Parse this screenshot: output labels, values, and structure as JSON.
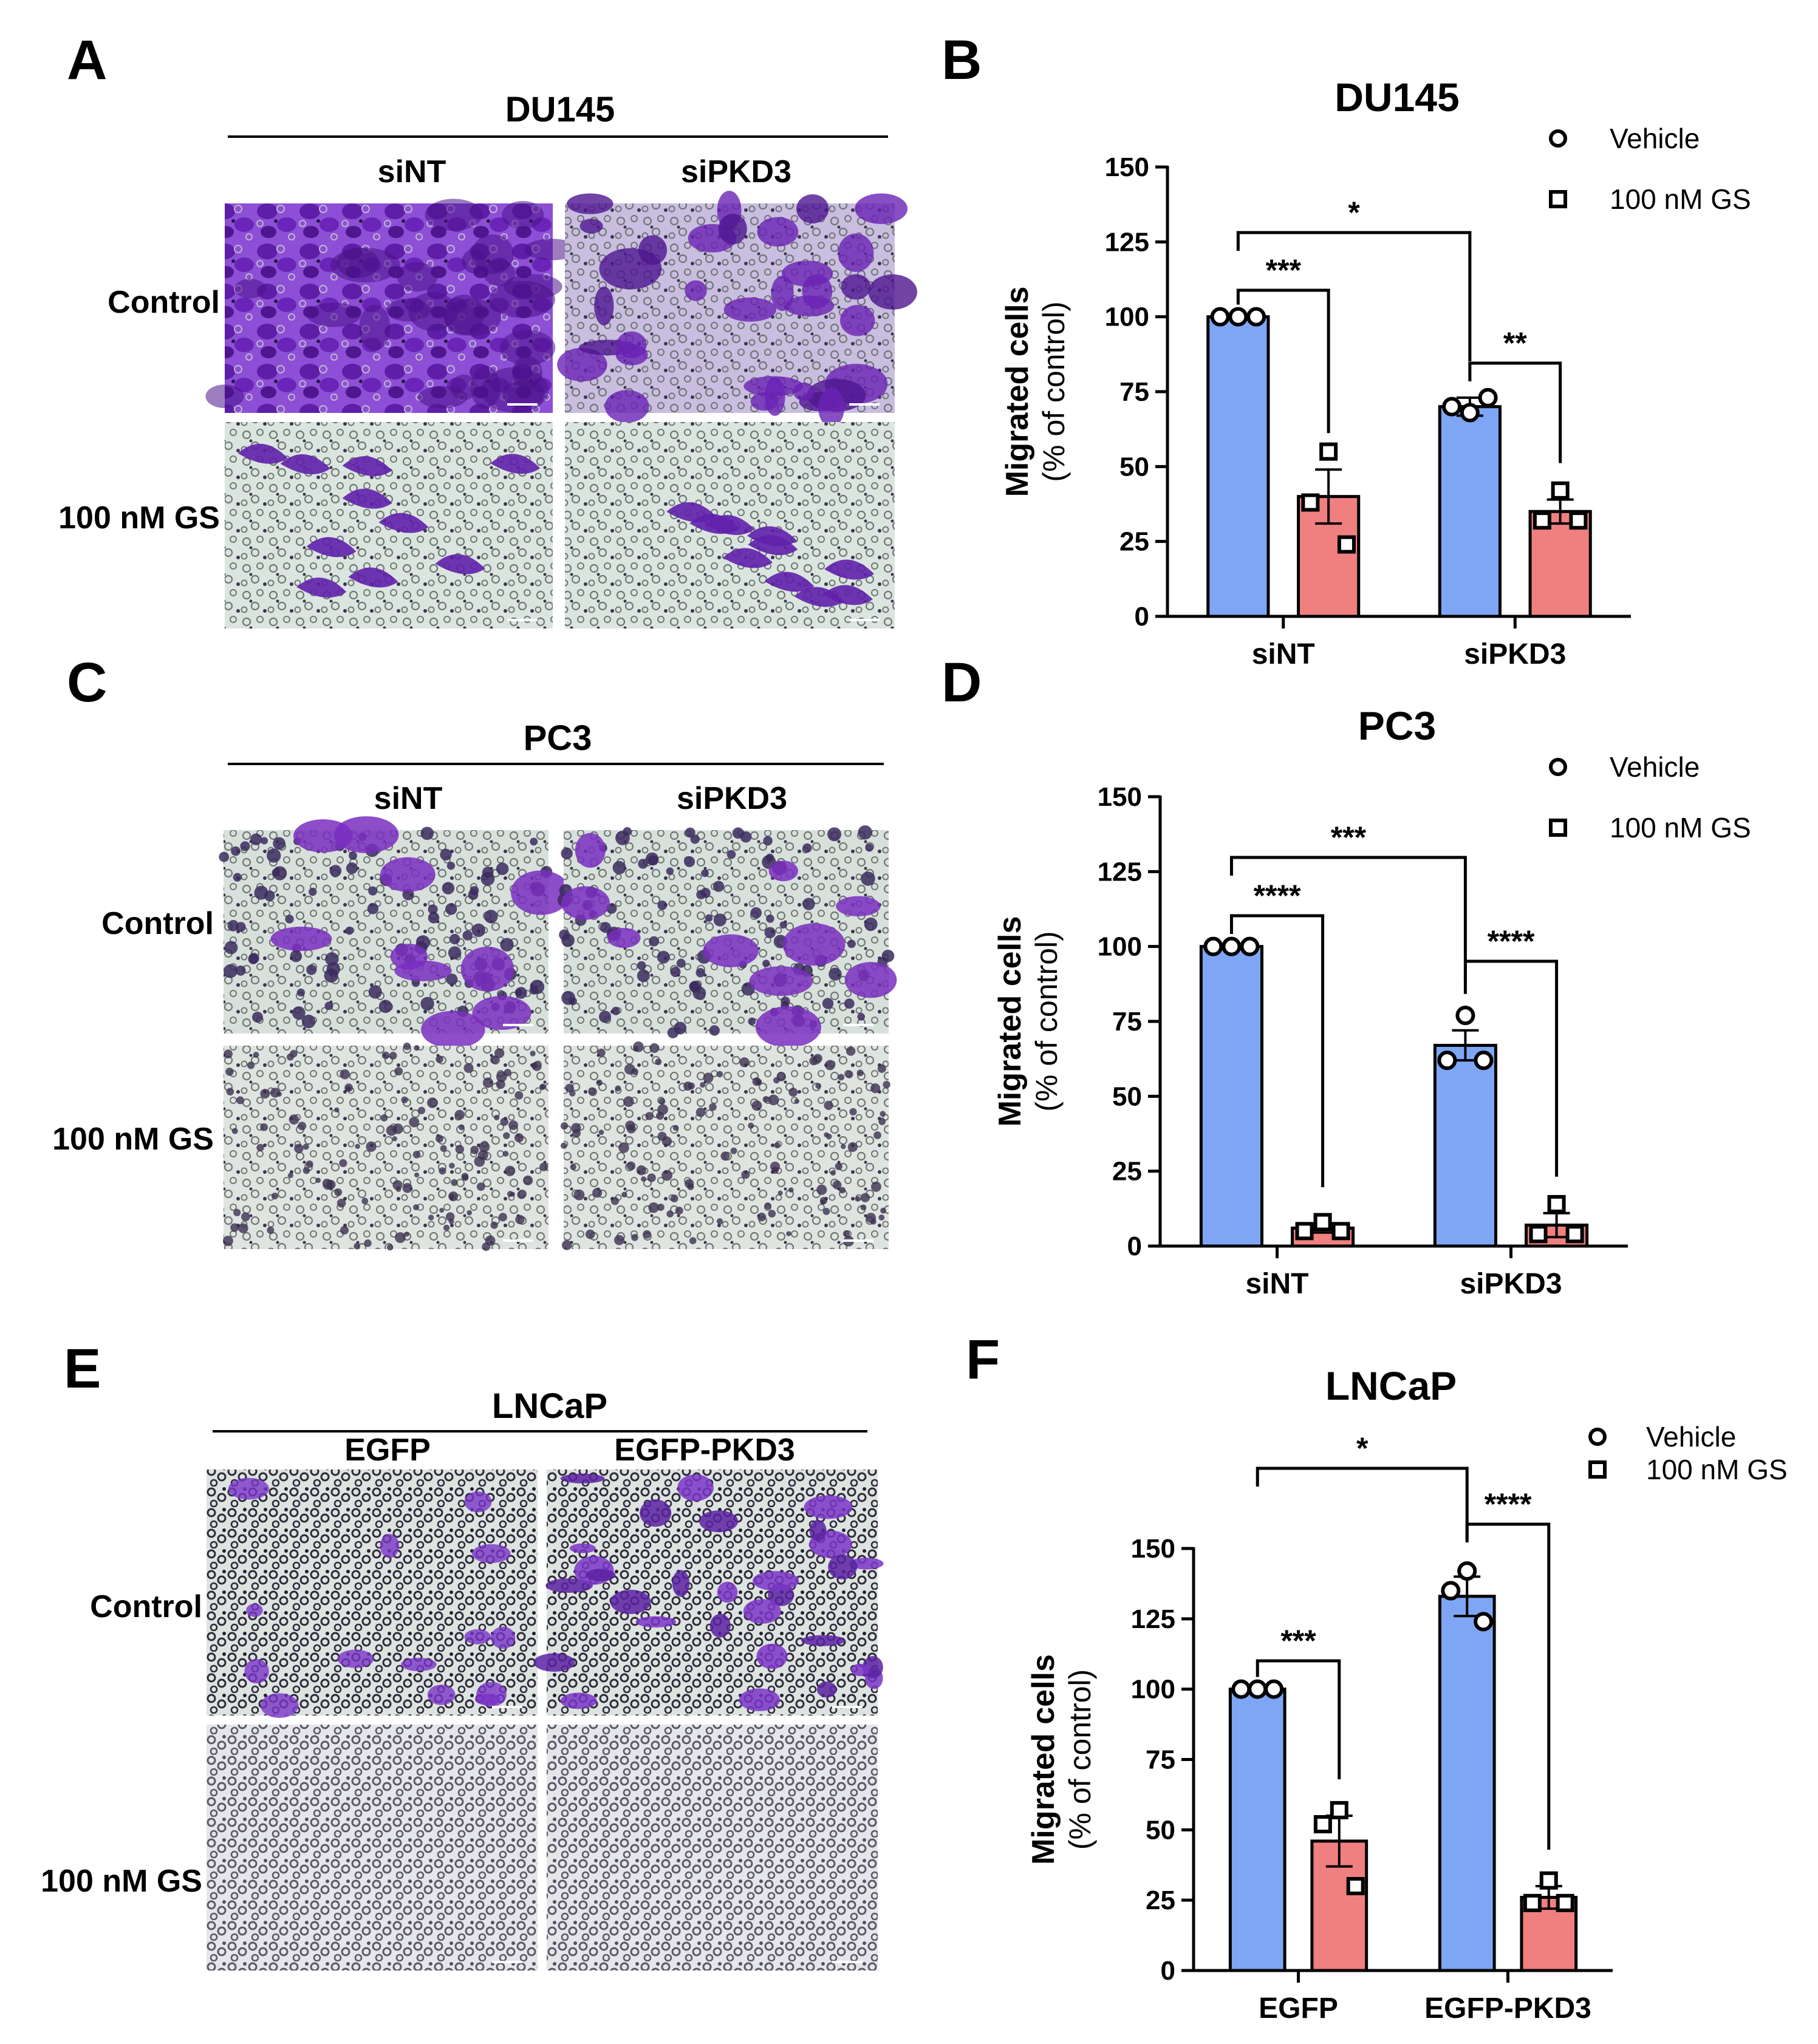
{
  "figure": {
    "panel_labels": [
      "A",
      "B",
      "C",
      "D",
      "E",
      "F"
    ],
    "images": [
      {
        "header": "DU145",
        "columns": [
          "siNT",
          "siPKD3"
        ],
        "rows": [
          "Control",
          "100 nM GS"
        ]
      },
      {
        "header": "PC3",
        "columns": [
          "siNT",
          "siPKD3"
        ],
        "rows": [
          "Control",
          "100 nM GS"
        ]
      },
      {
        "header": "LNCaP",
        "columns": [
          "EGFP",
          "EGFP-PKD3"
        ],
        "rows": [
          "Control",
          "100 nM GS"
        ]
      }
    ]
  },
  "colors": {
    "vehicle": "#7ea6f5",
    "gs": "#f08080",
    "stain_dense": "#7a2ec0",
    "stain_light": "#8a4fc6",
    "background_light": "#dde6e0"
  },
  "chart_data": [
    {
      "type": "bar",
      "title": "DU145",
      "ylabel": "Migrated cells",
      "ylabel_sub": "(% of control)",
      "ylim": [
        0,
        150
      ],
      "yticks": [
        0,
        25,
        50,
        75,
        100,
        125,
        150
      ],
      "categories": [
        "siNT",
        "siPKD3"
      ],
      "legend_position": "top-right",
      "series": [
        {
          "name": "Vehicle",
          "marker": "circle",
          "values": [
            100,
            70
          ],
          "sem": [
            0,
            3
          ],
          "points": [
            [
              100,
              100,
              100
            ],
            [
              68,
              70,
              73
            ]
          ]
        },
        {
          "name": "100 nM GS",
          "marker": "square",
          "values": [
            40,
            35
          ],
          "sem": [
            9,
            4
          ],
          "points": [
            [
              55,
              38,
              24
            ],
            [
              42,
              32,
              32
            ]
          ]
        }
      ],
      "significance": [
        {
          "label": "***",
          "from": [
            0,
            0
          ],
          "to": [
            0,
            1
          ]
        },
        {
          "label": "**",
          "from": [
            1,
            0
          ],
          "to": [
            1,
            1
          ]
        },
        {
          "label": "*",
          "from": [
            0,
            0
          ],
          "to": [
            1,
            0
          ]
        }
      ]
    },
    {
      "type": "bar",
      "title": "PC3",
      "ylabel": "Migrated cells",
      "ylabel_sub": "(% of control)",
      "ylim": [
        0,
        150
      ],
      "yticks": [
        0,
        25,
        50,
        75,
        100,
        125,
        150
      ],
      "categories": [
        "siNT",
        "siPKD3"
      ],
      "legend_position": "top-right",
      "series": [
        {
          "name": "Vehicle",
          "marker": "circle",
          "values": [
            100,
            67
          ],
          "sem": [
            0,
            5
          ],
          "points": [
            [
              100,
              100,
              100
            ],
            [
              77,
              62,
              62
            ]
          ]
        },
        {
          "name": "100 nM GS",
          "marker": "square",
          "values": [
            6,
            7
          ],
          "sem": [
            1.5,
            4
          ],
          "points": [
            [
              8,
              5,
              5
            ],
            [
              14,
              4,
              4
            ]
          ]
        }
      ],
      "significance": [
        {
          "label": "****",
          "from": [
            0,
            0
          ],
          "to": [
            0,
            1
          ]
        },
        {
          "label": "****",
          "from": [
            1,
            0
          ],
          "to": [
            1,
            1
          ]
        },
        {
          "label": "***",
          "from": [
            0,
            0
          ],
          "to": [
            1,
            0
          ]
        }
      ]
    },
    {
      "type": "bar",
      "title": "LNCaP",
      "ylabel": "Migrated cells",
      "ylabel_sub": "(% of control)",
      "ylim": [
        0,
        150
      ],
      "yticks": [
        0,
        25,
        50,
        75,
        100,
        125,
        150
      ],
      "categories": [
        "EGFP",
        "EGFP-PKD3"
      ],
      "legend_position": "top-right",
      "series": [
        {
          "name": "Vehicle",
          "marker": "circle",
          "values": [
            100,
            133
          ],
          "sem": [
            0,
            7
          ],
          "points": [
            [
              100,
              100,
              100
            ],
            [
              142,
              135,
              124
            ]
          ]
        },
        {
          "name": "100 nM GS",
          "marker": "square",
          "values": [
            46,
            26
          ],
          "sem": [
            9,
            4
          ],
          "points": [
            [
              57,
              52,
              30
            ],
            [
              32,
              24,
              24
            ]
          ]
        }
      ],
      "significance": [
        {
          "label": "***",
          "from": [
            0,
            0
          ],
          "to": [
            0,
            1
          ]
        },
        {
          "label": "****",
          "from": [
            1,
            0
          ],
          "to": [
            1,
            1
          ]
        },
        {
          "label": "*",
          "from": [
            0,
            0
          ],
          "to": [
            1,
            0
          ]
        }
      ]
    }
  ]
}
